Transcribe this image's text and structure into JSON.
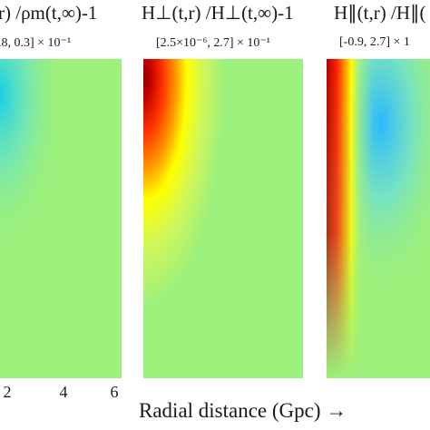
{
  "chart_data": {
    "type": "heatmap",
    "colormap": "jet",
    "xlabel": "Radial distance (Gpc) →",
    "panels": [
      {
        "title": "r) /ρm(t,∞)-1",
        "range_label": ".8, 0.3] × 10⁻¹",
        "range": [
          -0.8,
          0.3
        ],
        "scale": 0.1,
        "xticks": [
          "2",
          "4",
          "6"
        ],
        "pattern": "weak-negative-blue-near-origin"
      },
      {
        "title": "H⊥(t,r) /H⊥(t,∞)-1",
        "range_label": "[2.5×10⁻⁶, 2.7] × 10⁻¹",
        "range": [
          2.5e-06,
          2.7
        ],
        "scale": 0.1,
        "pattern": "hot-near-origin-decaying-outward"
      },
      {
        "title": "H∥(t,r) /H∥(",
        "range_label": "[-0.9, 2.7] × 1",
        "range": [
          -0.9,
          2.7
        ],
        "scale": 0.1,
        "pattern": "hot-edge-with-cool-blue-ring"
      }
    ]
  }
}
